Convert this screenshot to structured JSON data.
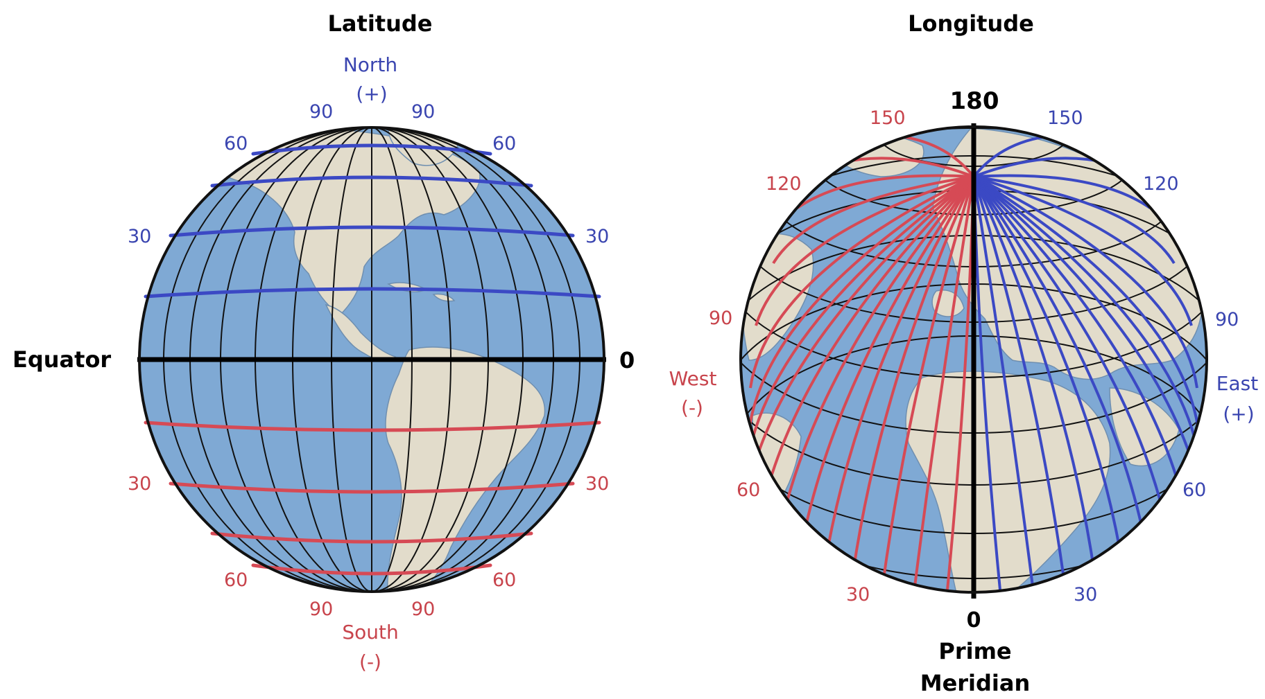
{
  "colors": {
    "ocean": "#7fa9d4",
    "land": "#e2dccb",
    "grid": "#111111",
    "north_lines": "#3b49c4",
    "south_lines": "#d64a55",
    "north_text": "#3a45b0",
    "south_text": "#c8444c"
  },
  "latitude": {
    "title": "Latitude",
    "north_label": "North",
    "north_sign": "(+)",
    "south_label": "South",
    "south_sign": "(-)",
    "equator_label": "Equator",
    "equator_value": "0",
    "north_ticks": [
      "30",
      "60",
      "90"
    ],
    "south_ticks": [
      "30",
      "60",
      "90"
    ]
  },
  "longitude": {
    "title": "Longitude",
    "top_value": "180",
    "bottom_value": "0",
    "prime_label_1": "Prime",
    "prime_label_2": "Meridian",
    "west_label": "West",
    "west_sign": "(-)",
    "east_label": "East",
    "east_sign": "(+)",
    "west_ticks": [
      "30",
      "60",
      "90",
      "120",
      "150"
    ],
    "east_ticks": [
      "30",
      "60",
      "90",
      "120",
      "150"
    ]
  }
}
